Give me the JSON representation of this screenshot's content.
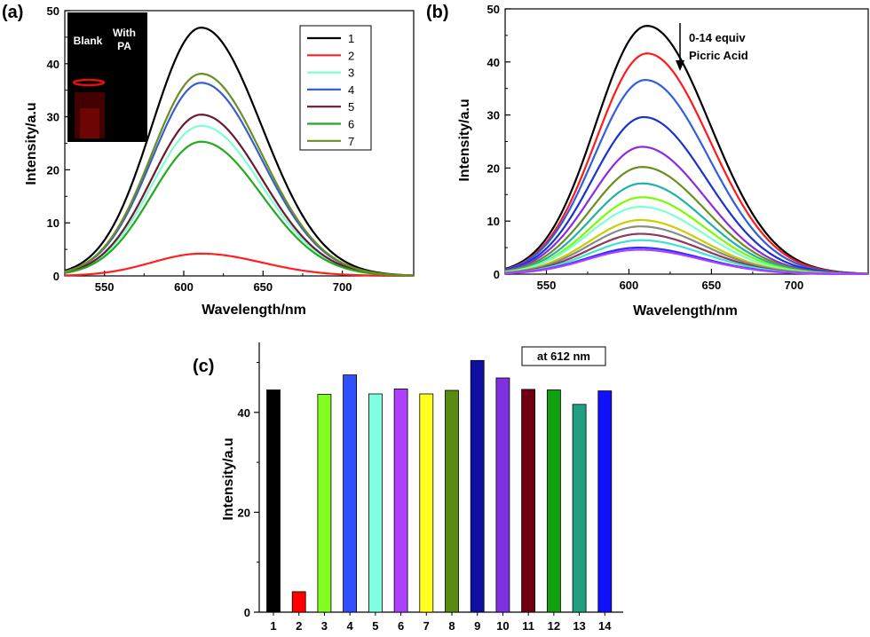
{
  "chart_data": [
    {
      "panel": "(a)",
      "type": "line",
      "xlabel": "Wavelength/nm",
      "ylabel": "Intensity/a.u",
      "xlim": [
        525,
        745
      ],
      "ylim": [
        0,
        50
      ],
      "xticks": [
        550,
        600,
        650,
        700
      ],
      "yticks": [
        0,
        10,
        20,
        30,
        40,
        50
      ],
      "legend_position": "top-right",
      "inset": {
        "labels": [
          "Blank",
          "With PA"
        ]
      },
      "series": [
        {
          "name": "1",
          "color": "#000000",
          "peak_x": 611,
          "peak_y": 46.8
        },
        {
          "name": "2",
          "color": "#ff2020",
          "peak_x": 611,
          "peak_y": 4.2
        },
        {
          "name": "3",
          "color": "#7fffd4",
          "peak_x": 611,
          "peak_y": 28.3
        },
        {
          "name": "4",
          "color": "#3a5fcd",
          "peak_x": 611,
          "peak_y": 36.4
        },
        {
          "name": "5",
          "color": "#6b1a2e",
          "peak_x": 611,
          "peak_y": 30.4
        },
        {
          "name": "6",
          "color": "#22aa22",
          "peak_x": 611,
          "peak_y": 25.3
        },
        {
          "name": "7",
          "color": "#6b8e23",
          "peak_x": 611,
          "peak_y": 38.1
        }
      ]
    },
    {
      "panel": "(b)",
      "type": "line",
      "xlabel": "Wavelength/nm",
      "ylabel": "Intensity/a.u",
      "xlim": [
        525,
        745
      ],
      "ylim": [
        0,
        50
      ],
      "xticks": [
        550,
        600,
        650,
        700
      ],
      "yticks": [
        0,
        10,
        20,
        30,
        40,
        50
      ],
      "annotation": [
        "0-14 equiv",
        "Picric Acid"
      ],
      "series": [
        {
          "color": "#000000",
          "peak_x": 611,
          "peak_y": 46.8
        },
        {
          "color": "#ff1a1a",
          "peak_x": 611,
          "peak_y": 41.6
        },
        {
          "color": "#2f5fdb",
          "peak_x": 610,
          "peak_y": 36.6
        },
        {
          "color": "#1a33cc",
          "peak_x": 609,
          "peak_y": 29.6
        },
        {
          "color": "#8a2be2",
          "peak_x": 608,
          "peak_y": 24.0
        },
        {
          "color": "#6b8e23",
          "peak_x": 608,
          "peak_y": 20.2
        },
        {
          "color": "#20b2aa",
          "peak_x": 608,
          "peak_y": 17.1
        },
        {
          "color": "#7cfc00",
          "peak_x": 608,
          "peak_y": 14.5
        },
        {
          "color": "#7fffd4",
          "peak_x": 607,
          "peak_y": 12.7
        },
        {
          "color": "#cccc00",
          "peak_x": 607,
          "peak_y": 10.2
        },
        {
          "color": "#8a8a8a",
          "peak_x": 607,
          "peak_y": 9.0
        },
        {
          "color": "#8b3a5a",
          "peak_x": 607,
          "peak_y": 7.6
        },
        {
          "color": "#40e0d0",
          "peak_x": 607,
          "peak_y": 6.4
        },
        {
          "color": "#3030ff",
          "peak_x": 606,
          "peak_y": 5.0
        },
        {
          "color": "#b040ff",
          "peak_x": 606,
          "peak_y": 4.6
        }
      ]
    },
    {
      "panel": "(c)",
      "type": "bar",
      "xlabel": "",
      "ylabel": "Intensity/a.u",
      "ylim": [
        0,
        54
      ],
      "yticks": [
        0,
        20,
        40
      ],
      "annotation": "at 612 nm",
      "categories": [
        "1",
        "2",
        "3",
        "4",
        "5",
        "6",
        "7",
        "8",
        "9",
        "10",
        "11",
        "12",
        "13",
        "14"
      ],
      "values": [
        44.5,
        4.1,
        43.6,
        47.5,
        43.7,
        44.7,
        43.7,
        44.4,
        50.4,
        46.9,
        44.6,
        44.5,
        41.6,
        44.3
      ],
      "colors": [
        "#000000",
        "#ff0000",
        "#80ff20",
        "#3050ff",
        "#80ffe0",
        "#b040ff",
        "#ffff20",
        "#5a8a10",
        "#1010a0",
        "#8030e0",
        "#700010",
        "#10a010",
        "#20a080",
        "#1010ff"
      ]
    }
  ]
}
